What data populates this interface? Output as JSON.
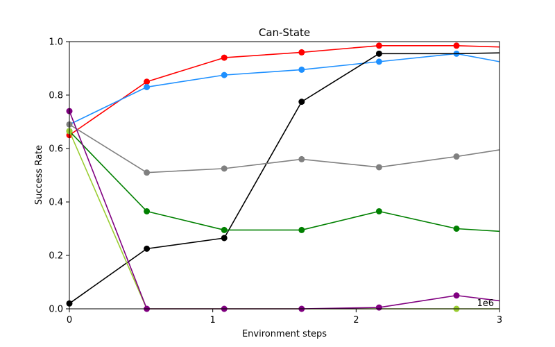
{
  "chart_data": {
    "type": "line",
    "title": "Can-State",
    "xlabel": "Environment steps",
    "ylabel": "Success Rate",
    "x_offset_label": "1e6",
    "xlim": [
      0,
      3
    ],
    "ylim": [
      0,
      1
    ],
    "xticks": [
      0,
      1,
      2,
      3
    ],
    "xtick_labels": [
      "0",
      "1",
      "2",
      "3"
    ],
    "yticks": [
      0,
      0.2,
      0.4,
      0.6,
      0.8,
      1.0
    ],
    "ytick_labels": [
      "0.0",
      "0.2",
      "0.4",
      "0.6",
      "0.8",
      "1.0"
    ],
    "grid": false,
    "legend": "none",
    "series": [
      {
        "color": "#ff0000",
        "x": [
          0,
          0.54,
          1.08,
          1.62,
          2.16,
          2.7,
          3.0
        ],
        "y": [
          0.65,
          0.85,
          0.94,
          0.96,
          0.985,
          0.985,
          0.98
        ],
        "markers": [
          true,
          true,
          true,
          true,
          true,
          true,
          false
        ]
      },
      {
        "color": "#1e90ff",
        "x": [
          0,
          0.54,
          1.08,
          1.62,
          2.16,
          2.7,
          3.0
        ],
        "y": [
          0.69,
          0.83,
          0.875,
          0.895,
          0.925,
          0.955,
          0.925
        ],
        "markers": [
          false,
          true,
          true,
          true,
          true,
          true,
          false
        ]
      },
      {
        "color": "#000000",
        "x": [
          0,
          0.54,
          1.08,
          1.62,
          2.16,
          2.7,
          3.0
        ],
        "y": [
          0.02,
          0.225,
          0.265,
          0.775,
          0.955,
          0.955,
          0.958
        ],
        "markers": [
          true,
          true,
          true,
          true,
          true,
          false,
          false
        ]
      },
      {
        "color": "#808080",
        "x": [
          0,
          0.54,
          1.08,
          1.62,
          2.16,
          2.7,
          3.0
        ],
        "y": [
          0.69,
          0.51,
          0.525,
          0.56,
          0.53,
          0.57,
          0.595
        ],
        "markers": [
          true,
          true,
          true,
          true,
          true,
          true,
          false
        ]
      },
      {
        "color": "#008000",
        "x": [
          0,
          0.54,
          1.08,
          1.62,
          2.16,
          2.7,
          3.0
        ],
        "y": [
          0.665,
          0.365,
          0.295,
          0.295,
          0.365,
          0.3,
          0.29
        ],
        "markers": [
          true,
          true,
          true,
          true,
          true,
          true,
          false
        ]
      },
      {
        "color": "#9acd32",
        "x": [
          0,
          0.54,
          1.08,
          1.62,
          2.16,
          2.7,
          3.0
        ],
        "y": [
          0.665,
          0,
          0,
          0,
          0,
          0,
          0
        ],
        "markers": [
          true,
          false,
          false,
          false,
          false,
          true,
          false
        ]
      },
      {
        "color": "#800080",
        "x": [
          0,
          0.54,
          1.08,
          1.62,
          2.16,
          2.7,
          3.0
        ],
        "y": [
          0.74,
          0,
          0,
          0,
          0.005,
          0.05,
          0.03
        ],
        "markers": [
          true,
          true,
          true,
          true,
          true,
          true,
          false
        ]
      }
    ]
  }
}
